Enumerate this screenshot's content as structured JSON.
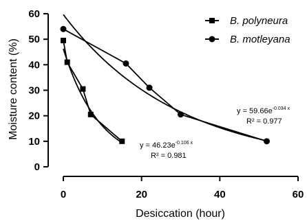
{
  "chart_data": {
    "type": "scatter",
    "xlabel": "Desiccation (hour)",
    "ylabel": "Moisture content (%)",
    "xlim": [
      0,
      60
    ],
    "ylim": [
      0,
      60
    ],
    "xticks": [
      0,
      20,
      40,
      60
    ],
    "yticks": [
      0,
      10,
      20,
      30,
      40,
      50,
      60
    ],
    "xtick_labels": [
      "0",
      "20",
      "40",
      "60"
    ],
    "ytick_labels": [
      "0",
      "10",
      "20",
      "30",
      "40",
      "50",
      "60"
    ],
    "grid": false,
    "legend_position": "top-right",
    "series": [
      {
        "name": "B. polyneura",
        "marker": "square",
        "color": "#000000",
        "x": [
          0,
          1,
          5,
          7,
          15
        ],
        "y": [
          49.5,
          41,
          30.5,
          20.5,
          10
        ],
        "fit": {
          "a": 46.23,
          "b": -0.106,
          "x_max": 15
        },
        "fit_label_prefix": "y = 46.23e",
        "fit_label_exponent": "-0.106 x",
        "r2_label": "R² = 0.981"
      },
      {
        "name": "B. motleyana",
        "marker": "circle",
        "color": "#000000",
        "x": [
          0,
          16,
          22,
          30,
          52
        ],
        "y": [
          54,
          40.5,
          31,
          20.5,
          10
        ],
        "fit": {
          "a": 59.66,
          "b": -0.034,
          "x_max": 52
        },
        "fit_label_prefix": "y = 59.66e",
        "fit_label_exponent": "-0.034 x",
        "r2_label": "R² = 0.977"
      }
    ]
  }
}
